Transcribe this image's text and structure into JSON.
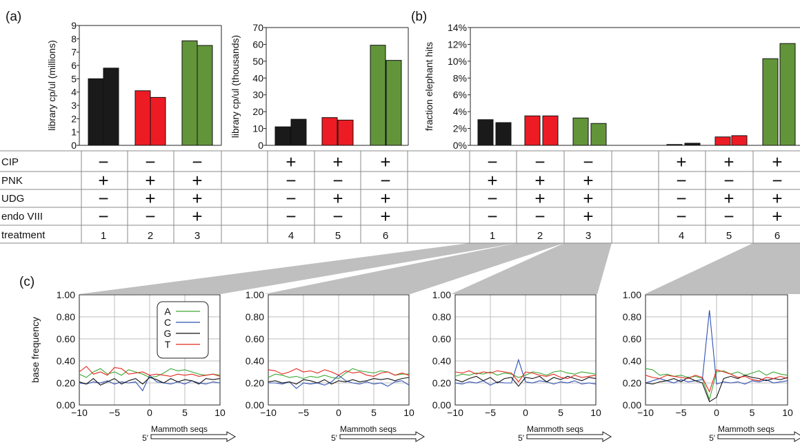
{
  "panel_letters": {
    "a": "(a)",
    "b": "(b)",
    "c": "(c)"
  },
  "colors": {
    "black": "#1a1a1a",
    "red": "#ed1c24",
    "green": "#62953a",
    "A": "#3aa832",
    "C": "#2d4fb5",
    "G": "#111111",
    "T": "#e3261d",
    "gray_band": "#bfbfbf",
    "grid": "#bcbcbc"
  },
  "table": {
    "row_labels": [
      "CIP",
      "PNK",
      "UDG",
      "endo VIII",
      "treatment"
    ],
    "treatments": [
      {
        "id": "1",
        "CIP": "−",
        "PNK": "+",
        "UDG": "−",
        "endo": "−"
      },
      {
        "id": "2",
        "CIP": "−",
        "PNK": "+",
        "UDG": "+",
        "endo": "−"
      },
      {
        "id": "3",
        "CIP": "−",
        "PNK": "+",
        "UDG": "+",
        "endo": "+"
      },
      {
        "id": "4",
        "CIP": "+",
        "PNK": "−",
        "UDG": "−",
        "endo": "−"
      },
      {
        "id": "5",
        "CIP": "+",
        "PNK": "−",
        "UDG": "+",
        "endo": "−"
      },
      {
        "id": "6",
        "CIP": "+",
        "PNK": "−",
        "UDG": "+",
        "endo": "+"
      }
    ]
  },
  "chart_data": [
    {
      "type": "bar",
      "panel": "(a)",
      "ylabel": "library cp/ul (millions)",
      "ylim": [
        0,
        9
      ],
      "yticks": [
        "0",
        "1",
        "2",
        "3",
        "4",
        "5",
        "6",
        "7",
        "8",
        "9"
      ],
      "categories": [
        "1",
        "2",
        "3"
      ],
      "series": [
        {
          "values": [
            5.0,
            4.1,
            7.85
          ]
        },
        {
          "values": [
            5.8,
            3.6,
            7.5
          ]
        }
      ],
      "bar_colors": [
        "black",
        "red",
        "green"
      ]
    },
    {
      "type": "bar",
      "panel": "(a)",
      "ylabel": "library cp/ul (thousands)",
      "ylim": [
        0,
        70
      ],
      "yticks": [
        "0",
        "10",
        "20",
        "30",
        "40",
        "50",
        "60",
        "70"
      ],
      "categories": [
        "4",
        "5",
        "6"
      ],
      "series": [
        {
          "values": [
            11,
            16.5,
            59.5
          ]
        },
        {
          "values": [
            15.5,
            15,
            50.5
          ]
        }
      ],
      "bar_colors": [
        "black",
        "red",
        "green"
      ]
    },
    {
      "type": "bar",
      "panel": "(b)",
      "ylabel": "fraction elephant hits",
      "ylim": [
        0,
        14
      ],
      "yticks": [
        "0%",
        "2%",
        "4%",
        "6%",
        "8%",
        "10%",
        "12%",
        "14%"
      ],
      "categories": [
        "1",
        "2",
        "3",
        "4",
        "5",
        "6"
      ],
      "series": [
        {
          "values": [
            3.05,
            3.5,
            3.25,
            0.1,
            1.0,
            10.3
          ]
        },
        {
          "values": [
            2.7,
            3.5,
            2.6,
            0.25,
            1.15,
            12.1
          ]
        }
      ],
      "bar_colors": [
        "black",
        "red",
        "green",
        "black",
        "red",
        "green"
      ]
    },
    {
      "type": "line",
      "panel": "(c)",
      "ylabel": "base frequency",
      "xlabel": "Mammoth seqs",
      "five_prime": "5′",
      "x": [
        -10,
        -9,
        -8,
        -7,
        -6,
        -5,
        -4,
        -3,
        -2,
        -1,
        0,
        1,
        2,
        3,
        4,
        5,
        6,
        7,
        8,
        9,
        10
      ],
      "xlim": [
        -10,
        10
      ],
      "ylim": [
        0,
        1
      ],
      "xticks": [
        "−10",
        "−5",
        "0",
        "5",
        "10"
      ],
      "yticks": [
        "0.00",
        "0.20",
        "0.40",
        "0.60",
        "0.80",
        "1.00"
      ],
      "legend": [
        "A",
        "C",
        "G",
        "T"
      ],
      "series": [
        {
          "name": "A",
          "values": [
            0.28,
            0.25,
            0.3,
            0.33,
            0.28,
            0.3,
            0.27,
            0.32,
            0.3,
            0.28,
            0.25,
            0.26,
            0.29,
            0.33,
            0.31,
            0.32,
            0.3,
            0.28,
            0.27,
            0.28,
            0.27
          ]
        },
        {
          "name": "C",
          "values": [
            0.2,
            0.19,
            0.21,
            0.2,
            0.22,
            0.19,
            0.21,
            0.2,
            0.21,
            0.13,
            0.27,
            0.21,
            0.2,
            0.19,
            0.21,
            0.19,
            0.22,
            0.2,
            0.19,
            0.21,
            0.2
          ]
        },
        {
          "name": "G",
          "values": [
            0.21,
            0.19,
            0.24,
            0.18,
            0.21,
            0.24,
            0.19,
            0.22,
            0.24,
            0.19,
            0.25,
            0.23,
            0.2,
            0.24,
            0.21,
            0.23,
            0.22,
            0.19,
            0.24,
            0.23,
            0.24
          ]
        },
        {
          "name": "T",
          "values": [
            0.3,
            0.35,
            0.28,
            0.3,
            0.27,
            0.34,
            0.33,
            0.28,
            0.29,
            0.3,
            0.27,
            0.28,
            0.27,
            0.26,
            0.28,
            0.27,
            0.28,
            0.26,
            0.27,
            0.28,
            0.26
          ]
        }
      ]
    },
    {
      "type": "line",
      "panel": "(c)",
      "xlabel": "Mammoth seqs",
      "five_prime": "5′",
      "x": [
        -10,
        -9,
        -8,
        -7,
        -6,
        -5,
        -4,
        -3,
        -2,
        -1,
        0,
        1,
        2,
        3,
        4,
        5,
        6,
        7,
        8,
        9,
        10
      ],
      "xlim": [
        -10,
        10
      ],
      "ylim": [
        0,
        1
      ],
      "xticks": [
        "−10",
        "−5",
        "0",
        "5",
        "10"
      ],
      "yticks": [
        "0.00",
        "0.20",
        "0.40",
        "0.60",
        "0.80",
        "1.00"
      ],
      "series": [
        {
          "name": "A",
          "values": [
            0.25,
            0.28,
            0.27,
            0.25,
            0.26,
            0.24,
            0.26,
            0.25,
            0.27,
            0.25,
            0.24,
            0.29,
            0.33,
            0.31,
            0.3,
            0.29,
            0.31,
            0.3,
            0.27,
            0.28,
            0.28
          ]
        },
        {
          "name": "C",
          "values": [
            0.2,
            0.2,
            0.19,
            0.21,
            0.15,
            0.2,
            0.19,
            0.2,
            0.18,
            0.21,
            0.27,
            0.22,
            0.2,
            0.19,
            0.21,
            0.19,
            0.2,
            0.17,
            0.21,
            0.22,
            0.18
          ]
        },
        {
          "name": "G",
          "values": [
            0.21,
            0.22,
            0.2,
            0.21,
            0.19,
            0.23,
            0.22,
            0.2,
            0.23,
            0.19,
            0.22,
            0.21,
            0.23,
            0.21,
            0.22,
            0.24,
            0.23,
            0.24,
            0.22,
            0.24,
            0.25
          ]
        },
        {
          "name": "T",
          "values": [
            0.32,
            0.31,
            0.28,
            0.3,
            0.33,
            0.3,
            0.31,
            0.29,
            0.32,
            0.3,
            0.27,
            0.31,
            0.29,
            0.3,
            0.27,
            0.26,
            0.29,
            0.3,
            0.27,
            0.29,
            0.27
          ]
        }
      ]
    },
    {
      "type": "line",
      "panel": "(c)",
      "xlabel": "Mammoth seqs",
      "five_prime": "5′",
      "x": [
        -10,
        -9,
        -8,
        -7,
        -6,
        -5,
        -4,
        -3,
        -2,
        -1,
        0,
        1,
        2,
        3,
        4,
        5,
        6,
        7,
        8,
        9,
        10
      ],
      "xlim": [
        -10,
        10
      ],
      "ylim": [
        0,
        1
      ],
      "xticks": [
        "−10",
        "−5",
        "0",
        "5",
        "10"
      ],
      "yticks": [
        "0.00",
        "0.20",
        "0.40",
        "0.60",
        "0.80",
        "1.00"
      ],
      "series": [
        {
          "name": "A",
          "values": [
            0.26,
            0.28,
            0.27,
            0.29,
            0.28,
            0.3,
            0.27,
            0.29,
            0.28,
            0.25,
            0.27,
            0.3,
            0.29,
            0.27,
            0.3,
            0.31,
            0.29,
            0.28,
            0.3,
            0.29,
            0.28
          ]
        },
        {
          "name": "C",
          "values": [
            0.2,
            0.19,
            0.21,
            0.2,
            0.22,
            0.18,
            0.21,
            0.2,
            0.2,
            0.41,
            0.21,
            0.2,
            0.22,
            0.21,
            0.19,
            0.21,
            0.2,
            0.22,
            0.19,
            0.2,
            0.19
          ]
        },
        {
          "name": "G",
          "values": [
            0.23,
            0.21,
            0.24,
            0.26,
            0.22,
            0.25,
            0.2,
            0.24,
            0.25,
            0.17,
            0.25,
            0.24,
            0.26,
            0.21,
            0.25,
            0.23,
            0.26,
            0.24,
            0.22,
            0.25,
            0.24
          ]
        },
        {
          "name": "T",
          "values": [
            0.3,
            0.29,
            0.31,
            0.28,
            0.3,
            0.29,
            0.31,
            0.3,
            0.29,
            0.21,
            0.3,
            0.29,
            0.27,
            0.26,
            0.28,
            0.25,
            0.24,
            0.27,
            0.25,
            0.26,
            0.27
          ]
        }
      ]
    },
    {
      "type": "line",
      "panel": "(c)",
      "xlabel": "Mammoth seqs",
      "five_prime": "5′",
      "x": [
        -10,
        -9,
        -8,
        -7,
        -6,
        -5,
        -4,
        -3,
        -2,
        -1,
        0,
        1,
        2,
        3,
        4,
        5,
        6,
        7,
        8,
        9,
        10
      ],
      "xlim": [
        -10,
        10
      ],
      "ylim": [
        0,
        1
      ],
      "xticks": [
        "−10",
        "−5",
        "0",
        "5",
        "10"
      ],
      "yticks": [
        "0.00",
        "0.20",
        "0.40",
        "0.60",
        "0.80",
        "1.00"
      ],
      "series": [
        {
          "name": "A",
          "values": [
            0.33,
            0.32,
            0.27,
            0.28,
            0.26,
            0.27,
            0.25,
            0.26,
            0.24,
            0.05,
            0.3,
            0.31,
            0.28,
            0.3,
            0.27,
            0.29,
            0.31,
            0.27,
            0.3,
            0.28,
            0.27
          ]
        },
        {
          "name": "C",
          "values": [
            0.2,
            0.22,
            0.24,
            0.22,
            0.2,
            0.23,
            0.21,
            0.22,
            0.23,
            0.86,
            0.19,
            0.21,
            0.2,
            0.21,
            0.19,
            0.22,
            0.21,
            0.23,
            0.2,
            0.21,
            0.22
          ]
        },
        {
          "name": "G",
          "values": [
            0.2,
            0.19,
            0.21,
            0.22,
            0.24,
            0.21,
            0.25,
            0.22,
            0.2,
            0.03,
            0.07,
            0.24,
            0.26,
            0.24,
            0.27,
            0.25,
            0.24,
            0.22,
            0.24,
            0.23,
            0.25
          ]
        },
        {
          "name": "T",
          "values": [
            0.27,
            0.25,
            0.24,
            0.27,
            0.26,
            0.25,
            0.24,
            0.27,
            0.25,
            0.12,
            0.32,
            0.3,
            0.28,
            0.25,
            0.26,
            0.23,
            0.22,
            0.25,
            0.24,
            0.26,
            0.24
          ]
        }
      ]
    }
  ]
}
